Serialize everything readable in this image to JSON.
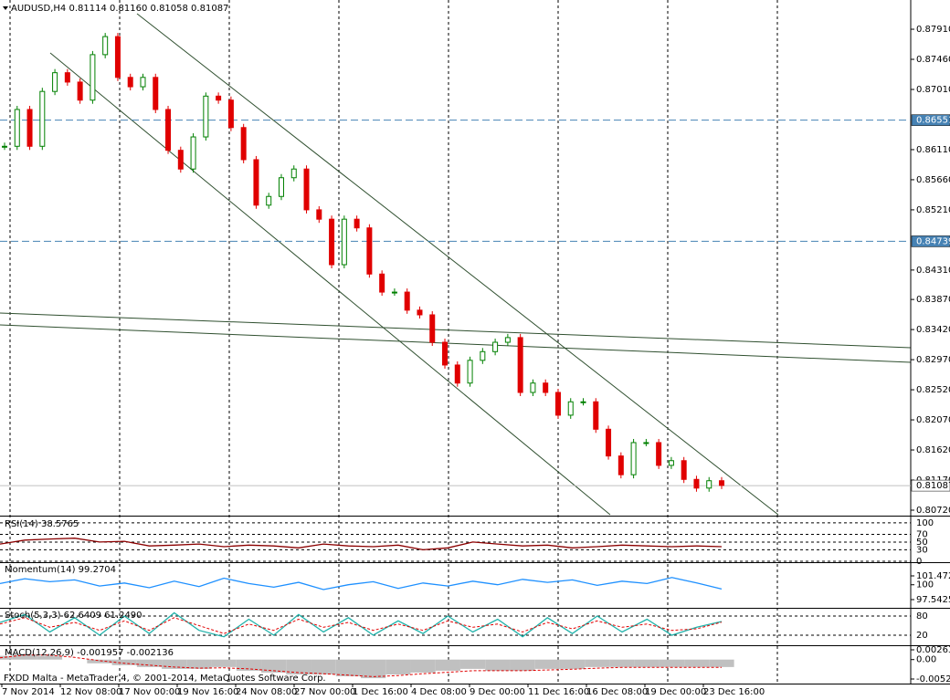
{
  "chart_data": {
    "type": "candlestick",
    "title": "AUDUSD,H4  0.81114 0.81160 0.81058 0.81087",
    "copyright": "FXDD Malta - MetaTrader 4, © 2001-2014, MetaQuotes Software Corp.",
    "up_color": "#008000",
    "down_color": "#e00000",
    "closes": [
      0.8616,
      0.8671,
      0.8616,
      0.8698,
      0.8726,
      0.8712,
      0.8685,
      0.8753,
      0.878,
      0.8719,
      0.8705,
      0.8719,
      0.8671,
      0.861,
      0.8582,
      0.863,
      0.8691,
      0.8685,
      0.8644,
      0.8596,
      0.8528,
      0.8541,
      0.8569,
      0.8582,
      0.8521,
      0.8507,
      0.8439,
      0.8507,
      0.8494,
      0.8425,
      0.8398,
      0.8398,
      0.8371,
      0.8364,
      0.8323,
      0.8289,
      0.8262,
      0.8296,
      0.8309,
      0.8323,
      0.833,
      0.8248,
      0.8262,
      0.8248,
      0.8214,
      0.8234,
      0.8234,
      0.8193,
      0.8153,
      0.8125,
      0.8173,
      0.8173,
      0.8139,
      0.8146,
      0.8118,
      0.8105,
      0.8116,
      0.8109
    ],
    "ylim": [
      0.80638,
      0.88347
    ],
    "yticks": [
      {
        "value": 0.8791,
        "label": "0.87910"
      },
      {
        "value": 0.8746,
        "label": "0.87460"
      },
      {
        "value": 0.8701,
        "label": "0.87010"
      },
      {
        "value": 0.8611,
        "label": "0.86110"
      },
      {
        "value": 0.8566,
        "label": "0.85660"
      },
      {
        "value": 0.8521,
        "label": "0.85210"
      },
      {
        "value": 0.8431,
        "label": "0.84310"
      },
      {
        "value": 0.8387,
        "label": "0.83870"
      },
      {
        "value": 0.8342,
        "label": "0.83420"
      },
      {
        "value": 0.8297,
        "label": "0.82970"
      },
      {
        "value": 0.8252,
        "label": "0.82520"
      },
      {
        "value": 0.8207,
        "label": "0.82070"
      },
      {
        "value": 0.8162,
        "label": "0.81620"
      },
      {
        "value": 0.8117,
        "label": "0.81170"
      },
      {
        "value": 0.8072,
        "label": "0.80720"
      }
    ],
    "levels": [
      0.86551,
      0.84739
    ],
    "current_price": 0.81087,
    "x_labels": [
      "7 Nov 2014",
      "12 Nov 08:00",
      "17 Nov 00:00",
      "19 Nov 16:00",
      "24 Nov 08:00",
      "27 Nov 00:00",
      "1 Dec 16:00",
      "4 Dec 08:00",
      "9 Dec 00:00",
      "11 Dec 16:00",
      "16 Dec 08:00",
      "19 Dec 00:00",
      "23 Dec 16:00"
    ],
    "panels": [
      {
        "title": "RSI(14) 38.5765",
        "ylim": [
          0,
          114
        ],
        "yticks": [
          100,
          70,
          50,
          30,
          0
        ],
        "grid": true,
        "series": [
          {
            "kind": "line",
            "color": "#8b0000",
            "values": [
              45,
              55,
              58,
              60,
              50,
              52,
              40,
              42,
              45,
              38,
              42,
              40,
              35,
              45,
              40,
              38,
              42,
              30,
              35,
              50,
              45,
              40,
              42,
              35,
              38,
              42,
              40,
              38,
              40,
              38
            ]
          }
        ]
      },
      {
        "title": "Momentum(14) 99.2704",
        "ylim": [
          96.33,
          103.59
        ],
        "yticks": [
          101.4721,
          100,
          97.5425
        ],
        "grid": false,
        "series": [
          {
            "kind": "line",
            "color": "#1e90ff",
            "values": [
              100.2,
              101.0,
              100.5,
              100.8,
              99.8,
              100.3,
              99.5,
              100.6,
              99.7,
              101.1,
              100.2,
              99.6,
              100.4,
              99.2,
              100.0,
              100.5,
              99.4,
              100.3,
              99.8,
              100.6,
              100.0,
              100.9,
              100.4,
              100.8,
              99.9,
              100.6,
              100.2,
              101.2,
              100.3,
              99.3
            ]
          }
        ]
      },
      {
        "title": "Stoch(5,3,3) 62.6409 61.2490",
        "ylim": [
          -8.6,
          102.9
        ],
        "yticks": [
          80,
          20
        ],
        "grid": true,
        "series": [
          {
            "kind": "line",
            "color": "#20b2aa",
            "values": [
              60,
              85,
              30,
              75,
              20,
              80,
              25,
              90,
              35,
              15,
              70,
              20,
              85,
              30,
              75,
              20,
              65,
              25,
              80,
              30,
              70,
              15,
              75,
              25,
              80,
              30,
              70,
              20,
              45,
              63
            ]
          },
          {
            "kind": "dashed",
            "color": "#e00000",
            "values": [
              55,
              75,
              45,
              60,
              35,
              65,
              35,
              75,
              50,
              25,
              55,
              35,
              70,
              45,
              60,
              35,
              55,
              35,
              65,
              45,
              55,
              30,
              60,
              40,
              65,
              45,
              55,
              35,
              40,
              61
            ]
          }
        ]
      },
      {
        "title": "MACD(12,26,9) -0.001957 -0.002136",
        "ylim": [
          -0.006209,
          0.003614
        ],
        "yticks": [
          0.002632,
          {
            "value": 0,
            "label": "0.00"
          },
          -0.005227
        ],
        "grid": false,
        "series": [
          {
            "kind": "bar",
            "color": "#c0c0c0",
            "values": [
              0.001,
              0.0015,
              0.001,
              0,
              -0.001,
              -0.0015,
              -0.002,
              -0.0025,
              -0.0025,
              -0.002,
              -0.003,
              -0.0035,
              -0.004,
              -0.004,
              -0.0045,
              -0.005,
              -0.004,
              -0.0035,
              -0.003,
              -0.0025,
              -0.003,
              -0.003,
              -0.0025,
              -0.0025,
              -0.002,
              -0.002,
              -0.002,
              -0.002,
              -0.002,
              -0.002
            ]
          },
          {
            "kind": "dashed",
            "color": "#e00000",
            "values": [
              0.0005,
              0.0012,
              0.0012,
              0.0006,
              -0.0003,
              -0.001,
              -0.0015,
              -0.002,
              -0.0023,
              -0.0022,
              -0.0025,
              -0.003,
              -0.0035,
              -0.0038,
              -0.0042,
              -0.0046,
              -0.0043,
              -0.0038,
              -0.0034,
              -0.003,
              -0.003,
              -0.003,
              -0.0028,
              -0.0026,
              -0.0023,
              -0.0021,
              -0.0021,
              -0.0021,
              -0.0021,
              -0.0021
            ]
          }
        ]
      }
    ]
  }
}
